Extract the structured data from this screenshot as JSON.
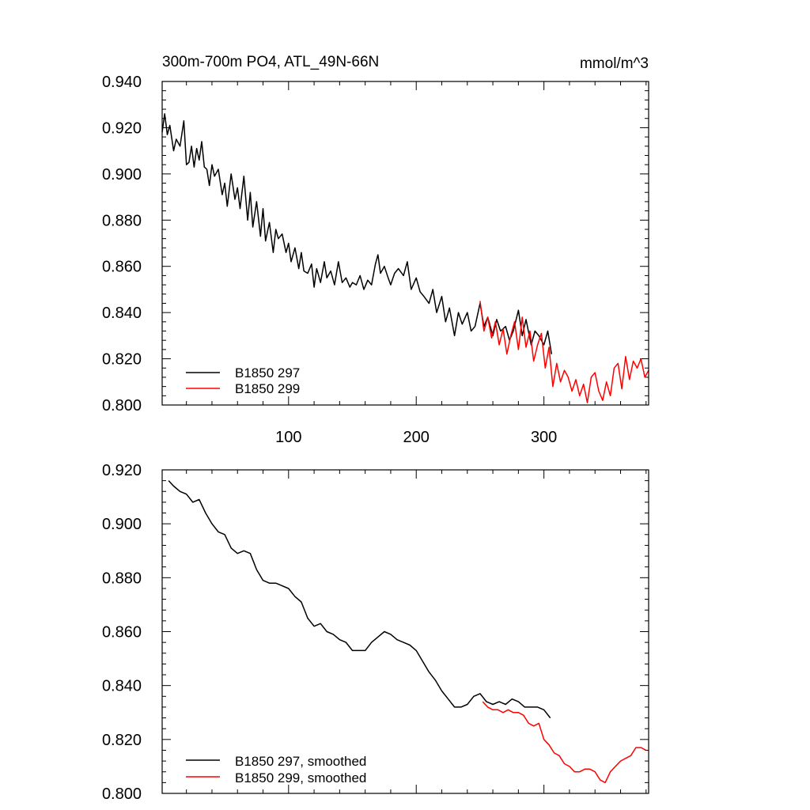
{
  "chart_data": [
    {
      "type": "line",
      "title": "300m-700m PO4, ATL_49N-66N",
      "units": "mmol/m^3",
      "xlim": [
        1,
        382
      ],
      "ylim": [
        0.8,
        0.94
      ],
      "x_ticks": [
        100,
        200,
        300
      ],
      "x_tick_labels": [
        "100",
        "200",
        "300"
      ],
      "y_ticks": [
        0.8,
        0.82,
        0.84,
        0.86,
        0.88,
        0.9,
        0.92,
        0.94
      ],
      "y_tick_labels": [
        "0.800",
        "0.820",
        "0.840",
        "0.860",
        "0.880",
        "0.900",
        "0.920",
        "0.940"
      ],
      "legend_position": "bottom-left",
      "series": [
        {
          "name": "B1850 297",
          "color": "#000000",
          "x": [
            1,
            3,
            5,
            7,
            10,
            12,
            15,
            18,
            20,
            22,
            24,
            26,
            28,
            30,
            32,
            34,
            36,
            38,
            40,
            42,
            45,
            48,
            50,
            52,
            55,
            58,
            60,
            62,
            65,
            68,
            70,
            72,
            75,
            78,
            80,
            82,
            85,
            88,
            90,
            92,
            95,
            98,
            100,
            102,
            105,
            108,
            110,
            112,
            115,
            118,
            120,
            122,
            125,
            128,
            130,
            133,
            136,
            139,
            142,
            145,
            148,
            150,
            153,
            156,
            159,
            162,
            165,
            168,
            170,
            172,
            175,
            178,
            180,
            183,
            186,
            190,
            193,
            196,
            200,
            203,
            206,
            210,
            213,
            216,
            220,
            223,
            226,
            230,
            233,
            236,
            240,
            243,
            246,
            250,
            253,
            256,
            260,
            263,
            266,
            270,
            273,
            276,
            280,
            283,
            286,
            290,
            293,
            296,
            300,
            303,
            306
          ],
          "y": [
            0.918,
            0.926,
            0.917,
            0.921,
            0.91,
            0.915,
            0.912,
            0.923,
            0.904,
            0.905,
            0.912,
            0.903,
            0.911,
            0.906,
            0.914,
            0.903,
            0.902,
            0.895,
            0.904,
            0.899,
            0.902,
            0.891,
            0.896,
            0.886,
            0.9,
            0.889,
            0.894,
            0.885,
            0.899,
            0.88,
            0.892,
            0.877,
            0.888,
            0.873,
            0.885,
            0.871,
            0.879,
            0.866,
            0.876,
            0.872,
            0.874,
            0.866,
            0.87,
            0.862,
            0.868,
            0.859,
            0.866,
            0.858,
            0.857,
            0.861,
            0.851,
            0.859,
            0.853,
            0.862,
            0.855,
            0.858,
            0.852,
            0.862,
            0.853,
            0.855,
            0.851,
            0.853,
            0.852,
            0.856,
            0.85,
            0.854,
            0.852,
            0.861,
            0.865,
            0.857,
            0.86,
            0.855,
            0.852,
            0.857,
            0.859,
            0.856,
            0.862,
            0.85,
            0.855,
            0.849,
            0.847,
            0.844,
            0.85,
            0.84,
            0.847,
            0.836,
            0.842,
            0.83,
            0.84,
            0.835,
            0.84,
            0.832,
            0.834,
            0.844,
            0.834,
            0.838,
            0.83,
            0.837,
            0.832,
            0.834,
            0.828,
            0.832,
            0.841,
            0.83,
            0.837,
            0.826,
            0.832,
            0.83,
            0.826,
            0.832,
            0.822
          ]
        },
        {
          "name": "B1850 299",
          "color": "#ff0000",
          "x": [
            250,
            253,
            256,
            259,
            262,
            265,
            268,
            271,
            274,
            277,
            280,
            283,
            286,
            289,
            292,
            295,
            298,
            301,
            304,
            307,
            310,
            313,
            316,
            319,
            322,
            325,
            328,
            331,
            334,
            337,
            340,
            343,
            346,
            349,
            352,
            355,
            358,
            361,
            364,
            367,
            370,
            373,
            376,
            379,
            382
          ],
          "y": [
            0.845,
            0.832,
            0.838,
            0.829,
            0.836,
            0.826,
            0.833,
            0.822,
            0.83,
            0.836,
            0.824,
            0.838,
            0.825,
            0.832,
            0.819,
            0.826,
            0.831,
            0.816,
            0.825,
            0.808,
            0.818,
            0.81,
            0.815,
            0.812,
            0.806,
            0.811,
            0.804,
            0.809,
            0.801,
            0.812,
            0.814,
            0.806,
            0.802,
            0.81,
            0.804,
            0.816,
            0.818,
            0.807,
            0.821,
            0.811,
            0.819,
            0.816,
            0.82,
            0.812,
            0.815
          ]
        }
      ]
    },
    {
      "type": "line",
      "xlim": [
        1,
        382
      ],
      "ylim": [
        0.8,
        0.92
      ],
      "y_ticks": [
        0.8,
        0.82,
        0.84,
        0.86,
        0.88,
        0.9,
        0.92
      ],
      "y_tick_labels": [
        "0.800",
        "0.820",
        "0.840",
        "0.860",
        "0.880",
        "0.900",
        "0.920"
      ],
      "legend_position": "bottom-left",
      "series": [
        {
          "name": "B1850 297, smoothed",
          "color": "#000000",
          "x": [
            6,
            10,
            15,
            20,
            25,
            30,
            35,
            40,
            45,
            50,
            55,
            60,
            65,
            70,
            75,
            80,
            85,
            90,
            95,
            100,
            105,
            110,
            115,
            120,
            125,
            130,
            135,
            140,
            145,
            150,
            155,
            160,
            165,
            170,
            175,
            180,
            185,
            190,
            195,
            200,
            205,
            210,
            215,
            220,
            225,
            230,
            235,
            240,
            245,
            250,
            255,
            260,
            265,
            270,
            275,
            280,
            285,
            290,
            295,
            300,
            305
          ],
          "y": [
            0.916,
            0.914,
            0.912,
            0.911,
            0.908,
            0.909,
            0.904,
            0.9,
            0.897,
            0.896,
            0.891,
            0.889,
            0.89,
            0.889,
            0.883,
            0.879,
            0.878,
            0.878,
            0.877,
            0.876,
            0.873,
            0.871,
            0.865,
            0.862,
            0.863,
            0.86,
            0.859,
            0.857,
            0.856,
            0.853,
            0.853,
            0.853,
            0.856,
            0.858,
            0.86,
            0.859,
            0.857,
            0.856,
            0.855,
            0.853,
            0.849,
            0.845,
            0.842,
            0.838,
            0.835,
            0.832,
            0.832,
            0.833,
            0.836,
            0.837,
            0.834,
            0.833,
            0.834,
            0.833,
            0.835,
            0.834,
            0.832,
            0.832,
            0.832,
            0.831,
            0.828
          ]
        },
        {
          "name": "B1850 299, smoothed",
          "color": "#ff0000",
          "x": [
            252,
            256,
            260,
            264,
            268,
            272,
            276,
            280,
            284,
            288,
            292,
            296,
            300,
            304,
            308,
            312,
            316,
            320,
            324,
            328,
            332,
            336,
            340,
            344,
            348,
            352,
            356,
            360,
            364,
            368,
            372,
            376,
            380
          ],
          "y": [
            0.834,
            0.832,
            0.831,
            0.831,
            0.83,
            0.831,
            0.83,
            0.83,
            0.829,
            0.826,
            0.825,
            0.826,
            0.82,
            0.818,
            0.815,
            0.814,
            0.811,
            0.81,
            0.808,
            0.808,
            0.809,
            0.809,
            0.808,
            0.805,
            0.804,
            0.808,
            0.81,
            0.812,
            0.813,
            0.814,
            0.817,
            0.817,
            0.816
          ]
        }
      ]
    }
  ]
}
